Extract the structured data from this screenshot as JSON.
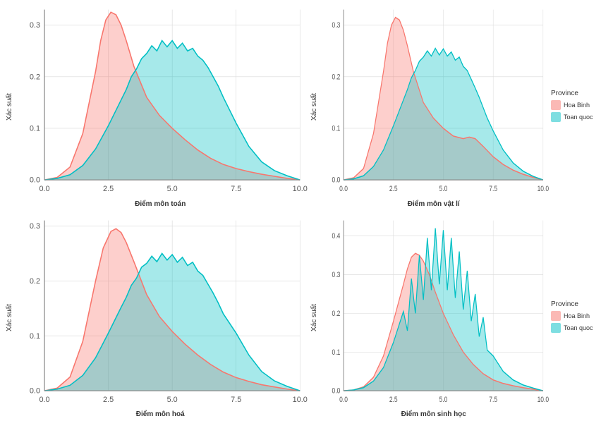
{
  "global": {
    "background_color": "#ffffff",
    "panel_bg": "#ffffff",
    "grid_color": "#d8d8d8",
    "axis_color": "#888888",
    "tick_color": "#555555",
    "label_fontsize": 10,
    "tick_fontsize": 9,
    "y_title": "Xác suất",
    "legend_title": "Province",
    "legend": [
      {
        "label": "Hoa Binh",
        "key": "hoa_binh"
      },
      {
        "label": "Toan quoc",
        "key": "toan_quoc"
      }
    ],
    "series_style": {
      "hoa_binh": {
        "stroke": "#f8766d",
        "fill": "#f8766d",
        "fill_opacity": 0.35,
        "stroke_width": 1.3
      },
      "toan_quoc": {
        "stroke": "#00bfc4",
        "fill": "#00bfc4",
        "fill_opacity": 0.35,
        "stroke_width": 1.3
      }
    }
  },
  "panels": [
    {
      "id": "toan",
      "x_title": "Điểm môn toán",
      "show_legend": false,
      "xlim": [
        0,
        10
      ],
      "ylim": [
        0,
        0.33
      ],
      "xticks": [
        0.0,
        2.5,
        5.0,
        7.5,
        10.0
      ],
      "yticks": [
        0.0,
        0.1,
        0.2,
        0.3
      ],
      "series": {
        "hoa_binh": {
          "x": [
            0.0,
            0.5,
            1.0,
            1.5,
            2.0,
            2.2,
            2.4,
            2.6,
            2.8,
            3.0,
            3.2,
            3.5,
            4.0,
            4.5,
            5.0,
            5.5,
            6.0,
            6.5,
            7.0,
            7.5,
            8.0,
            8.5,
            9.0,
            9.5,
            10.0
          ],
          "y": [
            0.0,
            0.005,
            0.025,
            0.09,
            0.21,
            0.27,
            0.31,
            0.325,
            0.32,
            0.3,
            0.27,
            0.22,
            0.16,
            0.125,
            0.1,
            0.078,
            0.058,
            0.042,
            0.03,
            0.022,
            0.016,
            0.011,
            0.007,
            0.003,
            0.0
          ]
        },
        "toan_quoc": {
          "x": [
            0.0,
            0.5,
            1.0,
            1.5,
            2.0,
            2.5,
            3.0,
            3.2,
            3.4,
            3.6,
            3.8,
            4.0,
            4.2,
            4.4,
            4.6,
            4.8,
            5.0,
            5.2,
            5.4,
            5.6,
            5.8,
            6.0,
            6.2,
            6.4,
            6.6,
            6.8,
            7.0,
            7.2,
            7.5,
            8.0,
            8.5,
            9.0,
            9.5,
            10.0
          ],
          "y": [
            0.0,
            0.003,
            0.01,
            0.028,
            0.06,
            0.105,
            0.155,
            0.175,
            0.2,
            0.215,
            0.235,
            0.245,
            0.26,
            0.25,
            0.27,
            0.258,
            0.27,
            0.255,
            0.265,
            0.25,
            0.255,
            0.24,
            0.232,
            0.218,
            0.2,
            0.182,
            0.16,
            0.14,
            0.11,
            0.065,
            0.035,
            0.018,
            0.008,
            0.0
          ]
        }
      }
    },
    {
      "id": "vatli",
      "x_title": "Điểm môn vật lí",
      "show_legend": true,
      "xlim": [
        0,
        10
      ],
      "ylim": [
        0,
        0.33
      ],
      "xticks": [
        0.0,
        2.5,
        5.0,
        7.5,
        10.0
      ],
      "yticks": [
        0.0,
        0.1,
        0.2,
        0.3
      ],
      "series": {
        "hoa_binh": {
          "x": [
            0.0,
            0.5,
            1.0,
            1.5,
            2.0,
            2.2,
            2.4,
            2.6,
            2.8,
            3.0,
            3.2,
            3.5,
            4.0,
            4.5,
            5.0,
            5.5,
            6.0,
            6.3,
            6.6,
            7.0,
            7.5,
            8.0,
            8.5,
            9.0,
            9.5,
            10.0
          ],
          "y": [
            0.0,
            0.004,
            0.022,
            0.09,
            0.21,
            0.265,
            0.3,
            0.315,
            0.31,
            0.29,
            0.26,
            0.21,
            0.15,
            0.12,
            0.1,
            0.085,
            0.08,
            0.083,
            0.08,
            0.065,
            0.045,
            0.03,
            0.019,
            0.011,
            0.005,
            0.0
          ]
        },
        "toan_quoc": {
          "x": [
            0.0,
            0.5,
            1.0,
            1.5,
            2.0,
            2.5,
            3.0,
            3.2,
            3.4,
            3.6,
            3.8,
            4.0,
            4.2,
            4.4,
            4.6,
            4.8,
            5.0,
            5.2,
            5.4,
            5.6,
            5.8,
            6.0,
            6.2,
            6.4,
            6.6,
            6.8,
            7.0,
            7.2,
            7.5,
            8.0,
            8.5,
            9.0,
            9.5,
            10.0
          ],
          "y": [
            0.0,
            0.002,
            0.008,
            0.026,
            0.058,
            0.105,
            0.155,
            0.175,
            0.198,
            0.212,
            0.23,
            0.238,
            0.25,
            0.24,
            0.255,
            0.242,
            0.254,
            0.24,
            0.248,
            0.232,
            0.238,
            0.22,
            0.212,
            0.195,
            0.178,
            0.16,
            0.14,
            0.12,
            0.095,
            0.058,
            0.033,
            0.017,
            0.007,
            0.0
          ]
        }
      }
    },
    {
      "id": "hoa",
      "x_title": "Điểm môn hoá",
      "show_legend": false,
      "xlim": [
        0,
        10
      ],
      "ylim": [
        0,
        0.31
      ],
      "xticks": [
        0.0,
        2.5,
        5.0,
        7.5,
        10.0
      ],
      "yticks": [
        0.0,
        0.1,
        0.2,
        0.3
      ],
      "series": {
        "hoa_binh": {
          "x": [
            0.0,
            0.5,
            1.0,
            1.5,
            2.0,
            2.3,
            2.6,
            2.8,
            3.0,
            3.2,
            3.5,
            4.0,
            4.5,
            5.0,
            5.5,
            6.0,
            6.5,
            7.0,
            7.5,
            8.0,
            8.5,
            9.0,
            9.5,
            10.0
          ],
          "y": [
            0.0,
            0.005,
            0.025,
            0.09,
            0.2,
            0.26,
            0.29,
            0.295,
            0.288,
            0.27,
            0.235,
            0.175,
            0.135,
            0.108,
            0.085,
            0.065,
            0.048,
            0.034,
            0.024,
            0.017,
            0.011,
            0.007,
            0.003,
            0.0
          ]
        },
        "toan_quoc": {
          "x": [
            0.0,
            0.5,
            1.0,
            1.5,
            2.0,
            2.5,
            3.0,
            3.2,
            3.4,
            3.6,
            3.8,
            4.0,
            4.2,
            4.4,
            4.6,
            4.8,
            5.0,
            5.2,
            5.4,
            5.6,
            5.8,
            6.0,
            6.2,
            6.4,
            6.6,
            6.8,
            7.0,
            7.5,
            8.0,
            8.5,
            9.0,
            9.5,
            10.0
          ],
          "y": [
            0.0,
            0.003,
            0.01,
            0.028,
            0.06,
            0.105,
            0.152,
            0.17,
            0.192,
            0.205,
            0.225,
            0.232,
            0.245,
            0.235,
            0.25,
            0.238,
            0.248,
            0.234,
            0.243,
            0.228,
            0.234,
            0.218,
            0.21,
            0.194,
            0.178,
            0.16,
            0.14,
            0.105,
            0.065,
            0.035,
            0.018,
            0.008,
            0.0
          ]
        }
      }
    },
    {
      "id": "sinhhoc",
      "x_title": "Điểm môn sinh học",
      "show_legend": true,
      "xlim": [
        0,
        10
      ],
      "ylim": [
        0,
        0.44
      ],
      "xticks": [
        0.0,
        2.5,
        5.0,
        7.5,
        10.0
      ],
      "yticks": [
        0.0,
        0.1,
        0.2,
        0.3,
        0.4
      ],
      "series": {
        "hoa_binh": {
          "x": [
            0.0,
            0.5,
            1.0,
            1.5,
            2.0,
            2.5,
            3.0,
            3.2,
            3.4,
            3.6,
            3.8,
            4.0,
            4.3,
            4.6,
            5.0,
            5.5,
            6.0,
            6.5,
            7.0,
            7.5,
            8.0,
            8.5,
            9.0,
            9.5,
            10.0
          ],
          "y": [
            0.0,
            0.002,
            0.01,
            0.035,
            0.09,
            0.18,
            0.275,
            0.315,
            0.345,
            0.355,
            0.35,
            0.335,
            0.3,
            0.255,
            0.2,
            0.145,
            0.1,
            0.068,
            0.044,
            0.028,
            0.019,
            0.013,
            0.008,
            0.004,
            0.0
          ]
        },
        "toan_quoc": {
          "x": [
            0.0,
            0.5,
            1.0,
            1.5,
            2.0,
            2.5,
            3.0,
            3.2,
            3.4,
            3.6,
            3.8,
            4.0,
            4.2,
            4.4,
            4.6,
            4.8,
            5.0,
            5.2,
            5.4,
            5.6,
            5.8,
            6.0,
            6.2,
            6.4,
            6.6,
            6.8,
            7.0,
            7.2,
            7.5,
            8.0,
            8.5,
            9.0,
            9.5,
            10.0
          ],
          "y": [
            0.0,
            0.002,
            0.008,
            0.025,
            0.06,
            0.125,
            0.205,
            0.155,
            0.29,
            0.2,
            0.35,
            0.235,
            0.395,
            0.26,
            0.42,
            0.275,
            0.415,
            0.26,
            0.395,
            0.24,
            0.36,
            0.21,
            0.31,
            0.18,
            0.25,
            0.14,
            0.19,
            0.105,
            0.09,
            0.05,
            0.028,
            0.015,
            0.007,
            0.0
          ]
        }
      }
    }
  ]
}
